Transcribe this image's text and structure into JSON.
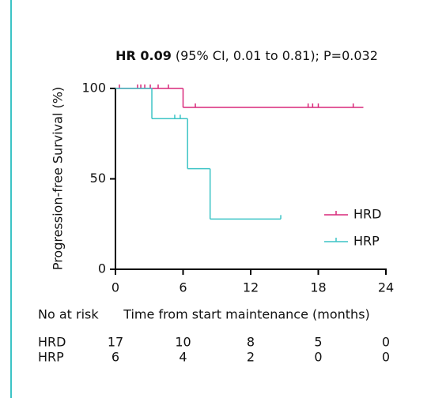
{
  "chart_data": {
    "type": "km",
    "title_bold": "HR 0.09",
    "title": "(95% CI, 0.01 to 0.81); P=0.032",
    "y_label": "Progression-free Survival (%)",
    "x_label": "Time from start maintenance (months)",
    "xlim": [
      0,
      24
    ],
    "xticks": [
      0,
      6,
      12,
      18,
      24
    ],
    "ylim": [
      0,
      100
    ],
    "yticks": [
      0,
      50,
      100
    ],
    "legend": "lower right",
    "series": [
      {
        "name": "HRD",
        "color": "#d8287a",
        "x": [
          0,
          6.0,
          22.0
        ],
        "values": [
          100,
          89.5,
          89.5
        ],
        "censored": {
          "x": [
            0.35,
            1.96,
            2.25,
            2.6,
            3.09,
            3.79,
            4.7,
            7.09,
            17.1,
            17.5,
            18.0,
            21.1
          ],
          "values": [
            100,
            100,
            100,
            100,
            100,
            100,
            100,
            89.5,
            89.5,
            89.5,
            89.5,
            89.5
          ]
        }
      },
      {
        "name": "HRP",
        "color": "#3cc4c6",
        "x": [
          0,
          3.23,
          6.4,
          8.4,
          14.67
        ],
        "values": [
          100,
          83.3,
          55.6,
          27.8,
          27.8
        ],
        "censored": {
          "x": [
            5.26,
            5.75,
            14.67
          ],
          "values": [
            83.3,
            83.3,
            27.8
          ]
        }
      }
    ],
    "risk_table": {
      "label": "No at risk",
      "rows": [
        {
          "name": "HRD",
          "color": "#d8287a",
          "values": [
            17,
            10,
            8,
            5,
            0
          ]
        },
        {
          "name": "HRP",
          "color": "#3cc4c6",
          "values": [
            6,
            4,
            2,
            0,
            0
          ]
        }
      ]
    }
  }
}
